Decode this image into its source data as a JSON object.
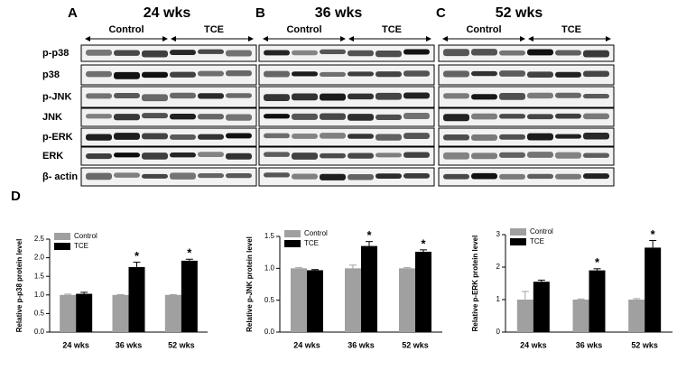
{
  "blots": {
    "panels": [
      {
        "label": "A",
        "title": "24 wks",
        "groups": [
          "Control",
          "TCE"
        ]
      },
      {
        "label": "B",
        "title": "36 wks",
        "groups": [
          "Control",
          "TCE"
        ]
      },
      {
        "label": "C",
        "title": "52 wks",
        "groups": [
          "Control",
          "TCE"
        ]
      }
    ],
    "rows": [
      "p-p38",
      "p38",
      "p-JNK",
      "JNK",
      "p-ERK",
      "ERK",
      "β- actin"
    ]
  },
  "panel_label_d": "D",
  "chart_data": [
    {
      "type": "bar",
      "ylabel": "Relative p-p38 protein level",
      "categories": [
        "24 wks",
        "36 wks",
        "52 wks"
      ],
      "ylim": [
        0,
        2.5
      ],
      "yticks": [
        {
          "value": 0,
          "label": "0.0"
        },
        0.5,
        {
          "value": 1,
          "label": "1.0"
        },
        1.5,
        {
          "value": 2,
          "label": "2.0"
        },
        2.5
      ],
      "series": [
        {
          "name": "Control",
          "color": "#a0a0a0",
          "values": [
            1.0,
            1.0,
            1.0
          ],
          "errors": [
            0.02,
            0.01,
            0.01
          ],
          "markers": [
            null,
            null,
            null
          ]
        },
        {
          "name": "TCE",
          "color": "#000000",
          "values": [
            1.03,
            1.75,
            1.92
          ],
          "errors": [
            0.04,
            0.13,
            0.04
          ],
          "markers": [
            null,
            "*",
            "*"
          ]
        }
      ]
    },
    {
      "type": "bar",
      "ylabel": "Relative p-JNK protein level",
      "categories": [
        "24 wks",
        "36 wks",
        "52 wks"
      ],
      "ylim": [
        0,
        1.5
      ],
      "yticks": [
        {
          "value": 0,
          "label": "0.0"
        },
        0.5,
        {
          "value": 1,
          "label": "1.0"
        },
        1.5
      ],
      "series": [
        {
          "name": "Control",
          "color": "#a0a0a0",
          "values": [
            1.0,
            1.0,
            1.0
          ],
          "errors": [
            0.01,
            0.05,
            0.01
          ],
          "markers": [
            null,
            null,
            null
          ]
        },
        {
          "name": "TCE",
          "color": "#000000",
          "values": [
            0.97,
            1.35,
            1.26
          ],
          "errors": [
            0.01,
            0.07,
            0.03
          ],
          "markers": [
            null,
            "*",
            "*"
          ]
        }
      ]
    },
    {
      "type": "bar",
      "ylabel": "Relative p-ERK protein level",
      "categories": [
        "24 wks",
        "36 wks",
        "52 wks"
      ],
      "ylim": [
        0,
        3
      ],
      "yticks": [
        0,
        1,
        2,
        3
      ],
      "series": [
        {
          "name": "Control",
          "color": "#a0a0a0",
          "values": [
            1.0,
            1.0,
            1.0
          ],
          "errors": [
            0.25,
            0.02,
            0.03
          ],
          "markers": [
            null,
            null,
            null
          ]
        },
        {
          "name": "TCE",
          "color": "#000000",
          "values": [
            1.55,
            1.9,
            2.6
          ],
          "errors": [
            0.05,
            0.05,
            0.22
          ],
          "markers": [
            null,
            "*",
            "*"
          ]
        }
      ]
    }
  ]
}
